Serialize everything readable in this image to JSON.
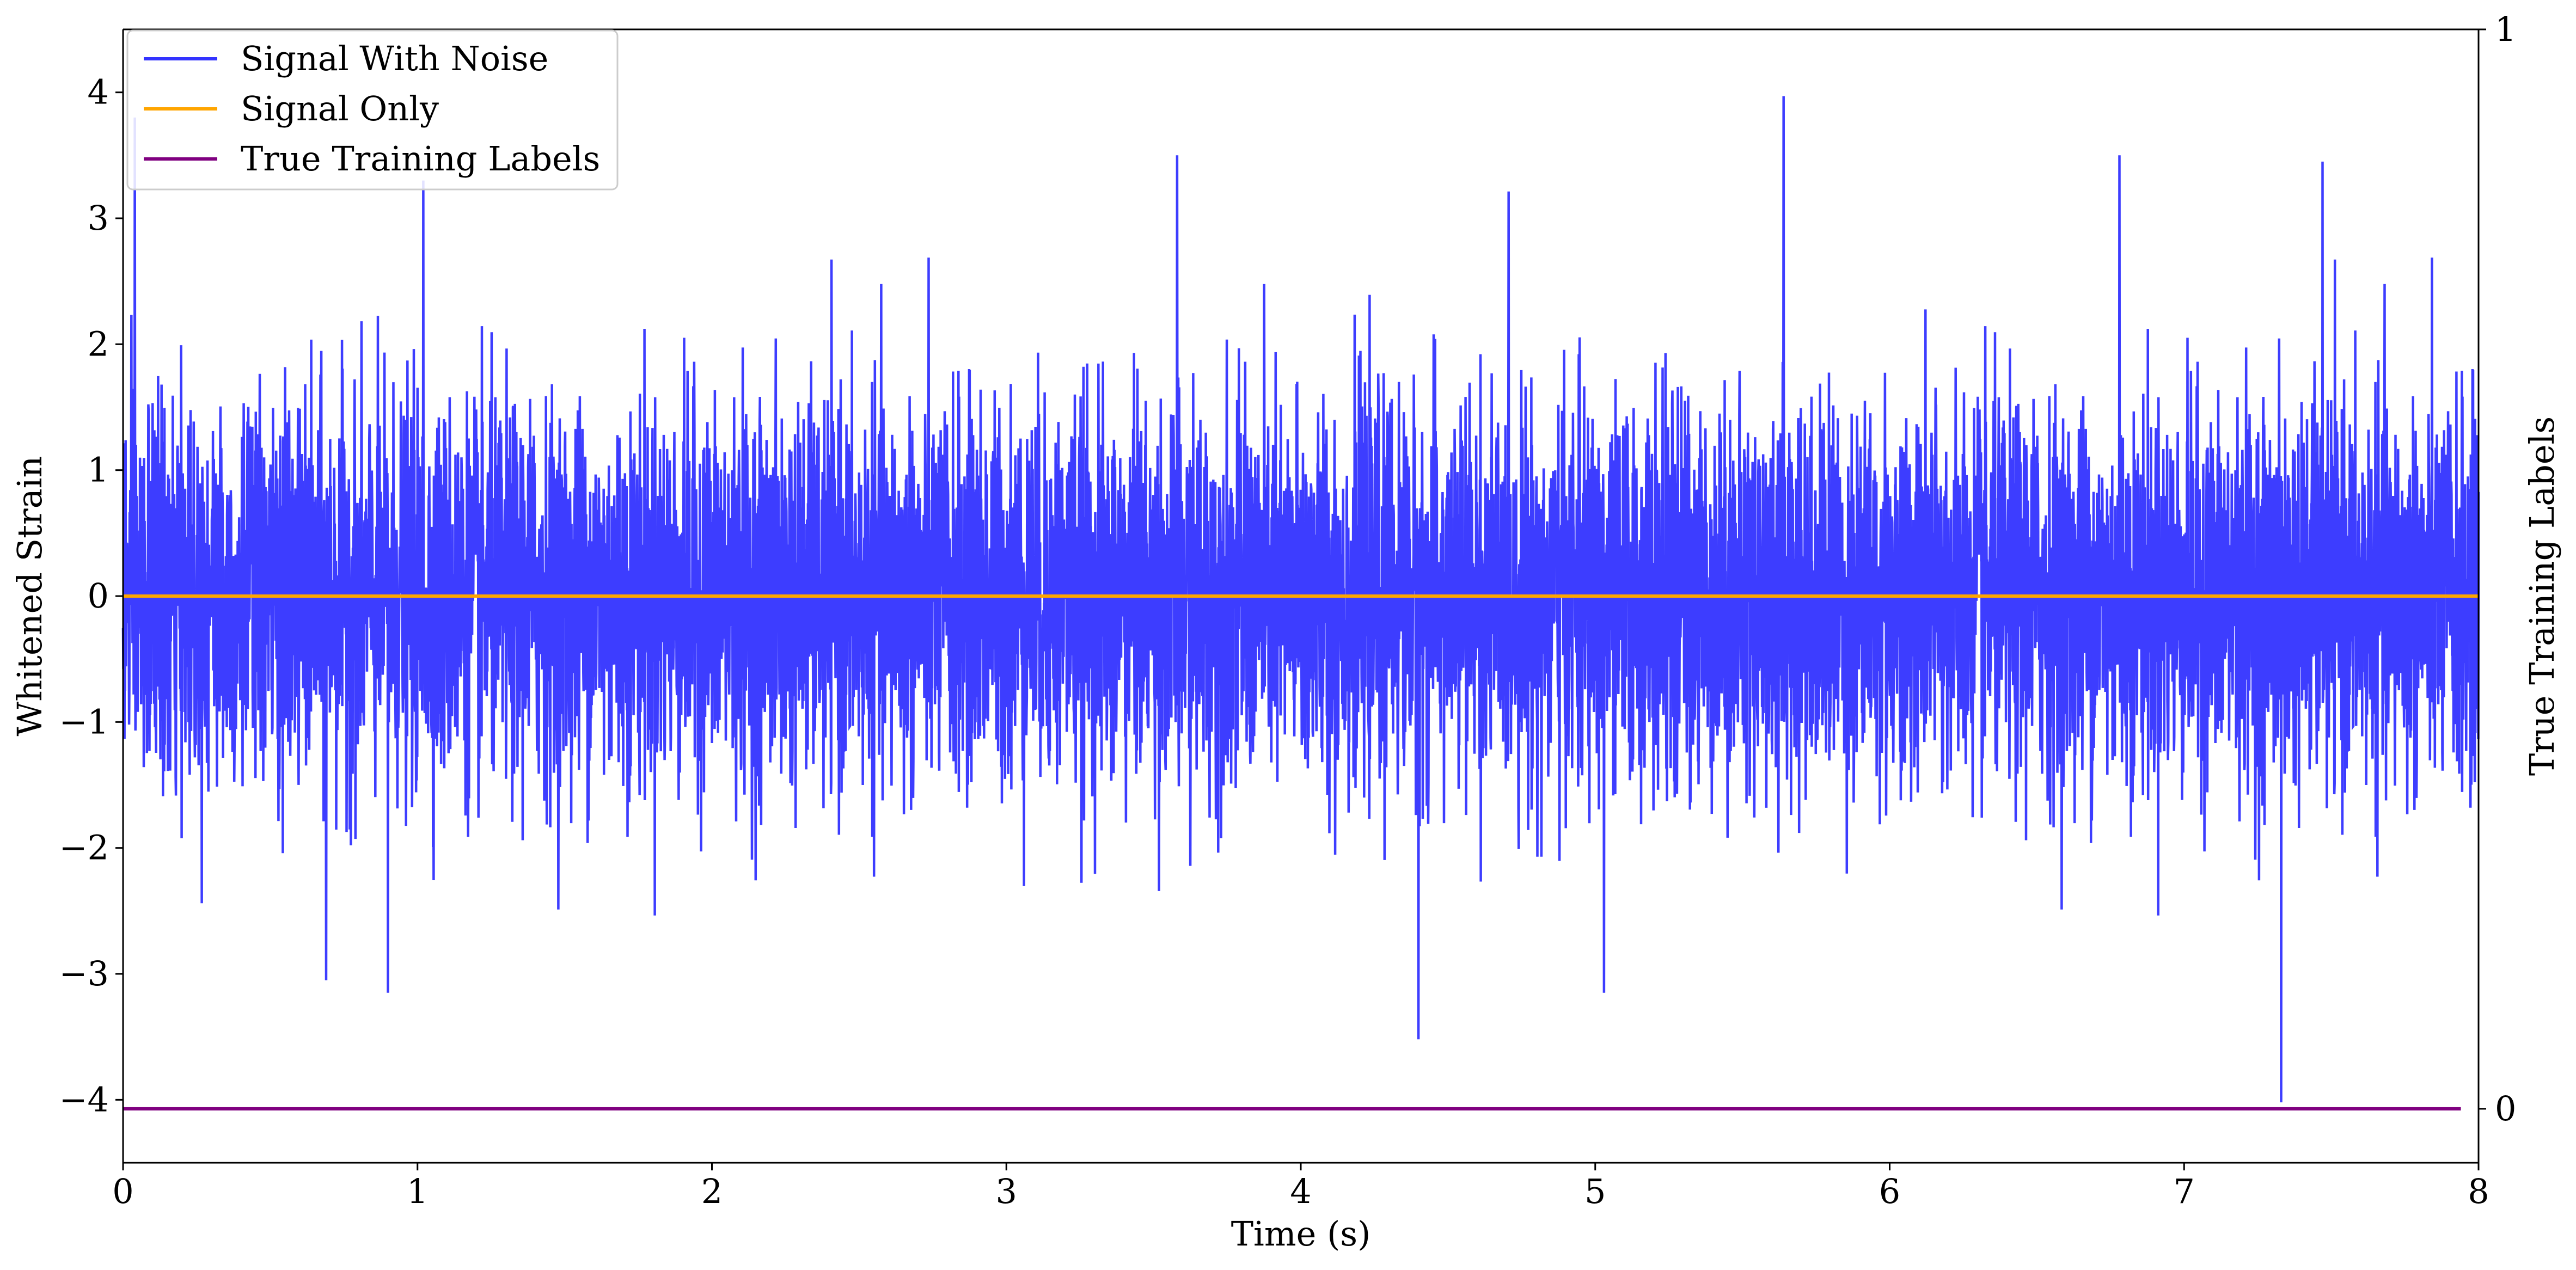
{
  "chart_data": {
    "type": "line",
    "title": "",
    "xlabel": "Time (s)",
    "ylabel": "Whitened Strain",
    "y2label": "True Training Labels",
    "xlim": [
      0,
      8
    ],
    "ylim": [
      -4.5,
      4.5
    ],
    "y2lim": [
      -0.05,
      1.0
    ],
    "x_ticks": [
      0,
      1,
      2,
      3,
      4,
      5,
      6,
      7,
      8
    ],
    "x_tick_labels": [
      "0",
      "1",
      "2",
      "3",
      "4",
      "5",
      "6",
      "7",
      "8"
    ],
    "y_ticks": [
      -4,
      -3,
      -2,
      -1,
      0,
      1,
      2,
      3,
      4
    ],
    "y_tick_labels": [
      "−4",
      "−3",
      "−2",
      "−1",
      "0",
      "1",
      "2",
      "3",
      "4"
    ],
    "y2_ticks": [
      0,
      1
    ],
    "y2_tick_labels": [
      "0",
      "1"
    ],
    "grid": false,
    "legend_position": "top-left",
    "series": [
      {
        "name": "Signal With Noise",
        "color": "#3333ff",
        "axis": "left",
        "description_stats": {
          "mean": 0,
          "std": 0.75
        },
        "notable_points": [
          {
            "x": 0.04,
            "y": 3.8
          },
          {
            "x": 1.02,
            "y": 3.3
          },
          {
            "x": 3.58,
            "y": 3.5
          },
          {
            "x": 5.64,
            "y": 3.97
          },
          {
            "x": 6.78,
            "y": 3.5
          },
          {
            "x": 7.47,
            "y": 3.45
          },
          {
            "x": 0.69,
            "y": -3.05
          },
          {
            "x": 0.9,
            "y": -3.15
          },
          {
            "x": 4.4,
            "y": -3.52
          },
          {
            "x": 5.03,
            "y": -3.15
          },
          {
            "x": 7.33,
            "y": -4.02
          }
        ]
      },
      {
        "name": "Signal Only",
        "color": "#ffa500",
        "axis": "left",
        "x": [
          0,
          8
        ],
        "y": [
          0,
          0
        ]
      },
      {
        "name": "True Training Labels",
        "color": "#800080",
        "axis": "right",
        "x": [
          0,
          7.94
        ],
        "y": [
          0,
          0
        ]
      }
    ]
  }
}
